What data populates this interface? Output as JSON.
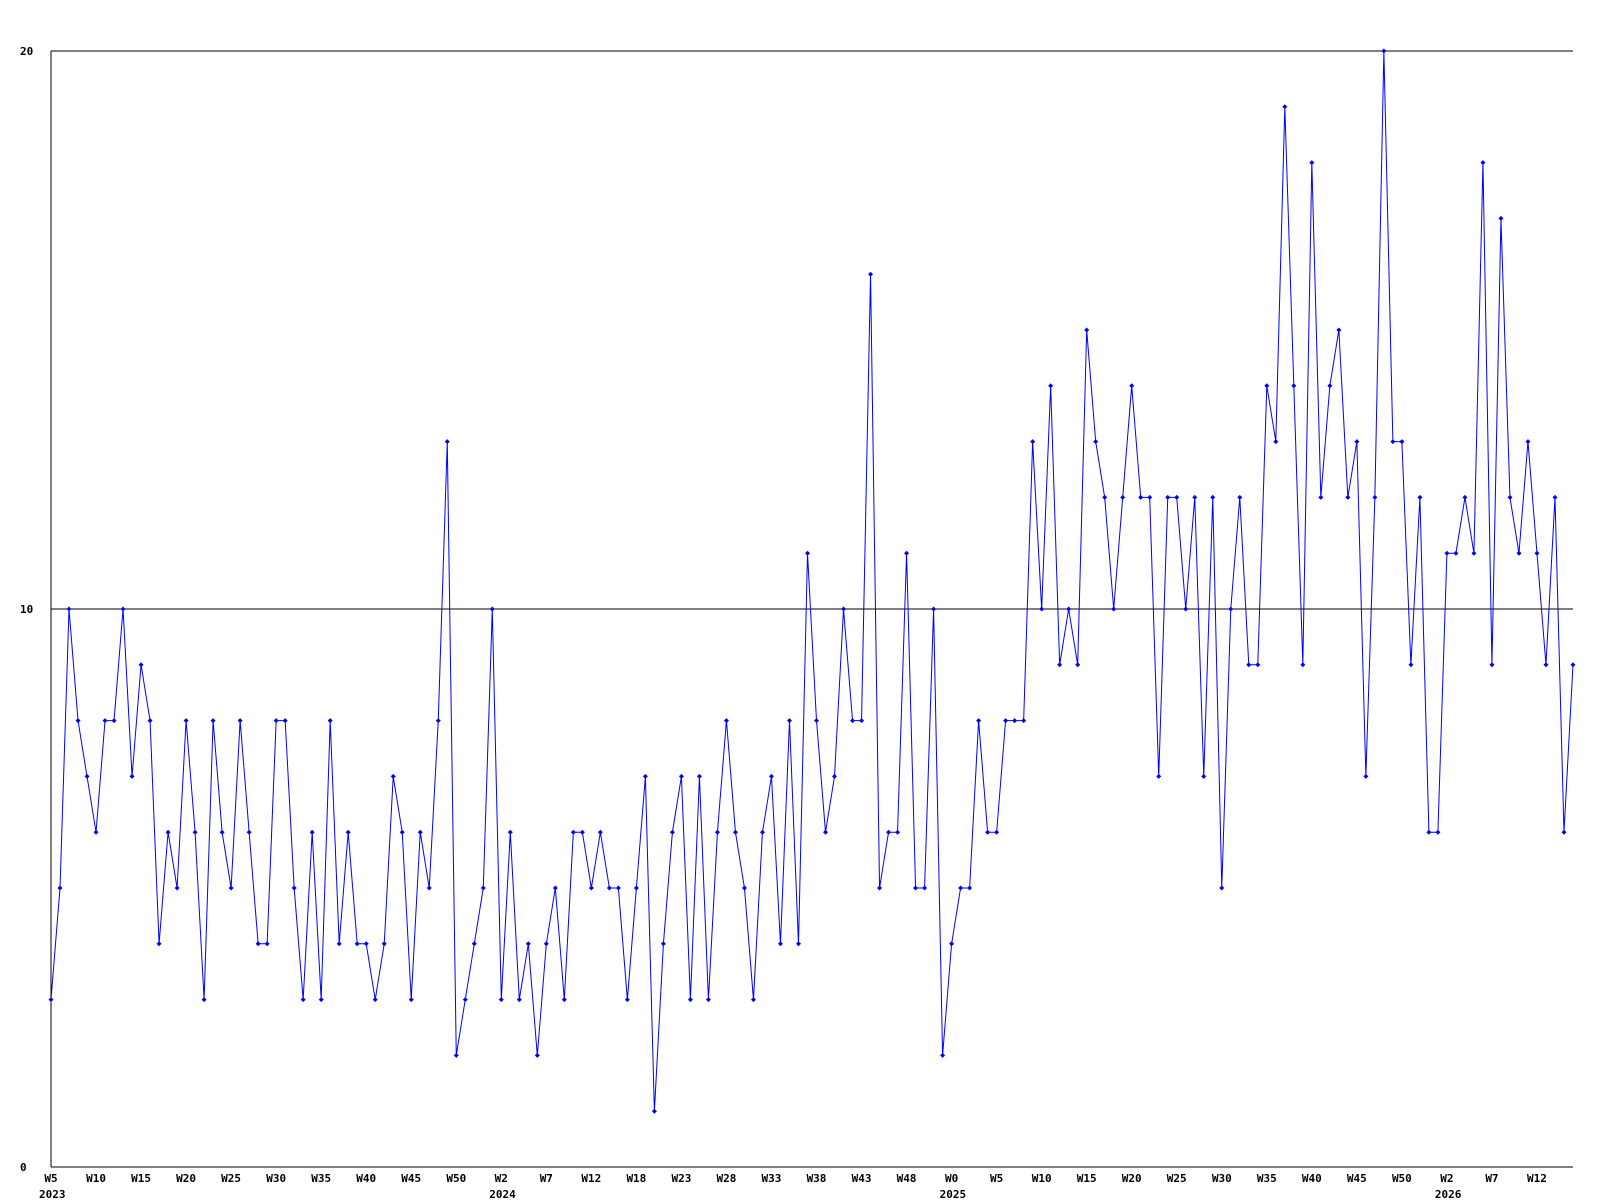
{
  "chart_data": {
    "type": "line",
    "color": "#0000ff",
    "ylim": [
      0,
      20
    ],
    "yticks": [
      0,
      10,
      20
    ],
    "grid": true,
    "categories": [
      "W5",
      null,
      null,
      null,
      null,
      "W10",
      null,
      null,
      null,
      null,
      "W15",
      null,
      null,
      null,
      null,
      "W20",
      null,
      null,
      null,
      null,
      "W25",
      null,
      null,
      null,
      null,
      "W30",
      null,
      null,
      null,
      null,
      "W35",
      null,
      null,
      null,
      null,
      "W40",
      null,
      null,
      null,
      null,
      "W45",
      null,
      null,
      null,
      null,
      "W50",
      null,
      null,
      null,
      null,
      "W2",
      null,
      null,
      null,
      null,
      "W7",
      null,
      null,
      null,
      null,
      "W12",
      null,
      null,
      null,
      null,
      "W18",
      null,
      null,
      null,
      null,
      "W23",
      null,
      null,
      null,
      null,
      "W28",
      null,
      null,
      null,
      null,
      "W33",
      null,
      null,
      null,
      null,
      "W38",
      null,
      null,
      null,
      null,
      "W43",
      null,
      null,
      null,
      null,
      "W48",
      null,
      null,
      null,
      null,
      "W0",
      null,
      null,
      null,
      null,
      "W5",
      null,
      null,
      null,
      null,
      "W10",
      null,
      null,
      null,
      null,
      "W15",
      null,
      null,
      null,
      null,
      "W20",
      null,
      null,
      null,
      null,
      "W25",
      null,
      null,
      null,
      null,
      "W30",
      null,
      null,
      null,
      null,
      "W35",
      null,
      null,
      null,
      null,
      "W40",
      null,
      null,
      null,
      null,
      "W45",
      null,
      null,
      null,
      null,
      "W50",
      null,
      null,
      null,
      null,
      "W2",
      null,
      null,
      null,
      null,
      "W7",
      null,
      null,
      null,
      null,
      "W12",
      null,
      null,
      null,
      null
    ],
    "years": [
      "2023",
      null,
      null,
      null,
      null,
      null,
      null,
      null,
      null,
      null,
      null,
      null,
      null,
      null,
      null,
      null,
      null,
      null,
      null,
      null,
      null,
      null,
      null,
      null,
      null,
      null,
      null,
      null,
      null,
      null,
      null,
      null,
      null,
      null,
      null,
      null,
      null,
      null,
      null,
      null,
      null,
      null,
      null,
      null,
      null,
      null,
      null,
      null,
      null,
      null,
      "2024",
      null,
      null,
      null,
      null,
      null,
      null,
      null,
      null,
      null,
      null,
      null,
      null,
      null,
      null,
      null,
      null,
      null,
      null,
      null,
      null,
      null,
      null,
      null,
      null,
      null,
      null,
      null,
      null,
      null,
      null,
      null,
      null,
      null,
      null,
      null,
      null,
      null,
      null,
      null,
      null,
      null,
      null,
      null,
      null,
      null,
      null,
      null,
      null,
      null,
      "2025",
      null,
      null,
      null,
      null,
      null,
      null,
      null,
      null,
      null,
      null,
      null,
      null,
      null,
      null,
      null,
      null,
      null,
      null,
      null,
      null,
      null,
      null,
      null,
      null,
      null,
      null,
      null,
      null,
      null,
      null,
      null,
      null,
      null,
      null,
      null,
      null,
      null,
      null,
      null,
      null,
      null,
      null,
      null,
      null,
      null,
      null,
      null,
      null,
      null,
      null,
      null,
      null,
      null,
      null,
      "2026",
      null,
      null,
      null,
      null,
      null,
      null,
      null,
      null,
      null,
      null,
      null,
      null,
      null,
      null
    ],
    "values": [
      3,
      5,
      10,
      8,
      7,
      6,
      8,
      8,
      10,
      7,
      9,
      8,
      4,
      6,
      5,
      8,
      6,
      3,
      8,
      6,
      5,
      8,
      6,
      4,
      4,
      8,
      8,
      5,
      3,
      6,
      3,
      8,
      4,
      6,
      4,
      4,
      3,
      4,
      7,
      6,
      3,
      6,
      5,
      8,
      13,
      2,
      3,
      4,
      5,
      10,
      3,
      6,
      3,
      4,
      2,
      4,
      5,
      3,
      6,
      6,
      5,
      6,
      5,
      5,
      3,
      5,
      7,
      1,
      4,
      6,
      7,
      3,
      7,
      3,
      6,
      8,
      6,
      5,
      3,
      6,
      7,
      4,
      8,
      4,
      11,
      8,
      6,
      7,
      10,
      8,
      8,
      16,
      5,
      6,
      6,
      11,
      5,
      5,
      10,
      2,
      4,
      5,
      5,
      8,
      6,
      6,
      8,
      8,
      8,
      13,
      10,
      14,
      9,
      10,
      9,
      15,
      13,
      12,
      10,
      12,
      14,
      12,
      12,
      7,
      12,
      12,
      10,
      12,
      7,
      12,
      5,
      10,
      12,
      9,
      9,
      14,
      13,
      19,
      14,
      9,
      18,
      12,
      14,
      15,
      12,
      13,
      7,
      12,
      20,
      13,
      13,
      9,
      12,
      6,
      6,
      11,
      11,
      12,
      11,
      18,
      9,
      17,
      12,
      11,
      13,
      11,
      9,
      12,
      6,
      9
    ]
  }
}
